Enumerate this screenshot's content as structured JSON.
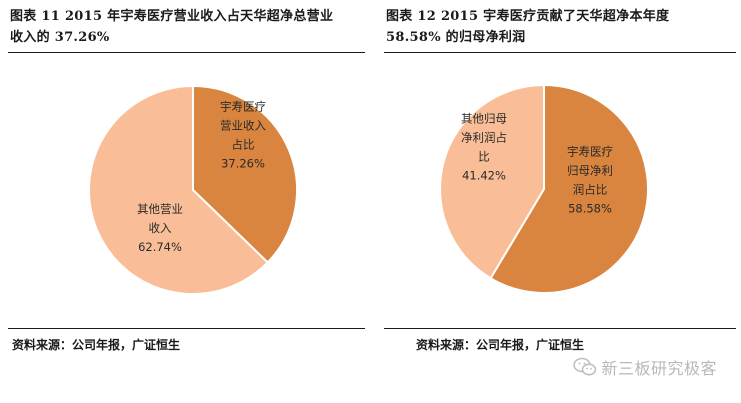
{
  "panels": [
    {
      "title_line1": "图表 11 2015 年宇寿医疗营业收入占天华超净总营业",
      "title_line2": "收入的 37.26%",
      "source": "资料来源：公司年报，广证恒生"
    },
    {
      "title_line1": "图表 12 2015 宇寿医疗贡献了天华超净本年度",
      "title_line2": "58.58% 的归母净利润",
      "source": "资料来源：公司年报，广证恒生"
    }
  ],
  "chart_data": [
    {
      "type": "pie",
      "title": "",
      "slices": [
        {
          "label_lines": [
            "宇寿医疗",
            "营业收入",
            "占比",
            "37.26%"
          ],
          "value": 37.26,
          "color": "#D9843F"
        },
        {
          "label_lines": [
            "其他营业",
            "收入",
            "62.74%"
          ],
          "value": 62.74,
          "color": "#F9BE97"
        }
      ],
      "start_angle_deg": 0,
      "direction": "clockwise",
      "stroke": "#ffffff"
    },
    {
      "type": "pie",
      "title": "",
      "slices": [
        {
          "label_lines": [
            "宇寿医疗",
            "归母净利",
            "润占比",
            "58.58%"
          ],
          "value": 58.58,
          "color": "#D9843F"
        },
        {
          "label_lines": [
            "其他归母",
            "净利润占",
            "比",
            "41.42%"
          ],
          "value": 41.42,
          "color": "#F9BE97"
        }
      ],
      "start_angle_deg": 0,
      "direction": "clockwise",
      "stroke": "#ffffff"
    }
  ],
  "watermark": {
    "text": "新三板研究极客",
    "icon": "wechat-logo-icon"
  }
}
